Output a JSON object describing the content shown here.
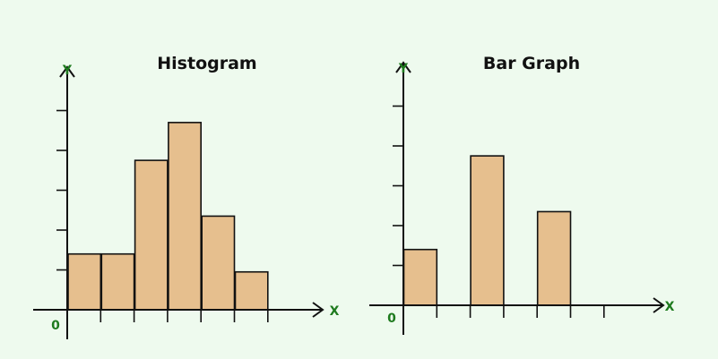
{
  "chart_data": [
    {
      "type": "bar",
      "style": "histogram",
      "title": "Histogram",
      "xlabel": "X",
      "ylabel": "Y",
      "origin_label": "0",
      "x_slots": 6,
      "values": [
        1.4,
        1.4,
        3.75,
        4.7,
        2.35,
        0.95
      ],
      "ylim": [
        0,
        5
      ],
      "grid": false,
      "legend": "none",
      "colors": {
        "bar": "#e6bf8e",
        "axis": "#111111",
        "axis_label": "#1e7a1e"
      }
    },
    {
      "type": "bar",
      "style": "bar-graph",
      "title": "Bar Graph",
      "xlabel": "X",
      "ylabel": "Y",
      "origin_label": "0",
      "x_slots": 6,
      "values": [
        1.4,
        0,
        3.75,
        0,
        2.35,
        0
      ],
      "ylim": [
        0,
        5
      ],
      "grid": false,
      "legend": "none",
      "colors": {
        "bar": "#e6bf8e",
        "axis": "#111111",
        "axis_label": "#1e7a1e"
      }
    }
  ]
}
